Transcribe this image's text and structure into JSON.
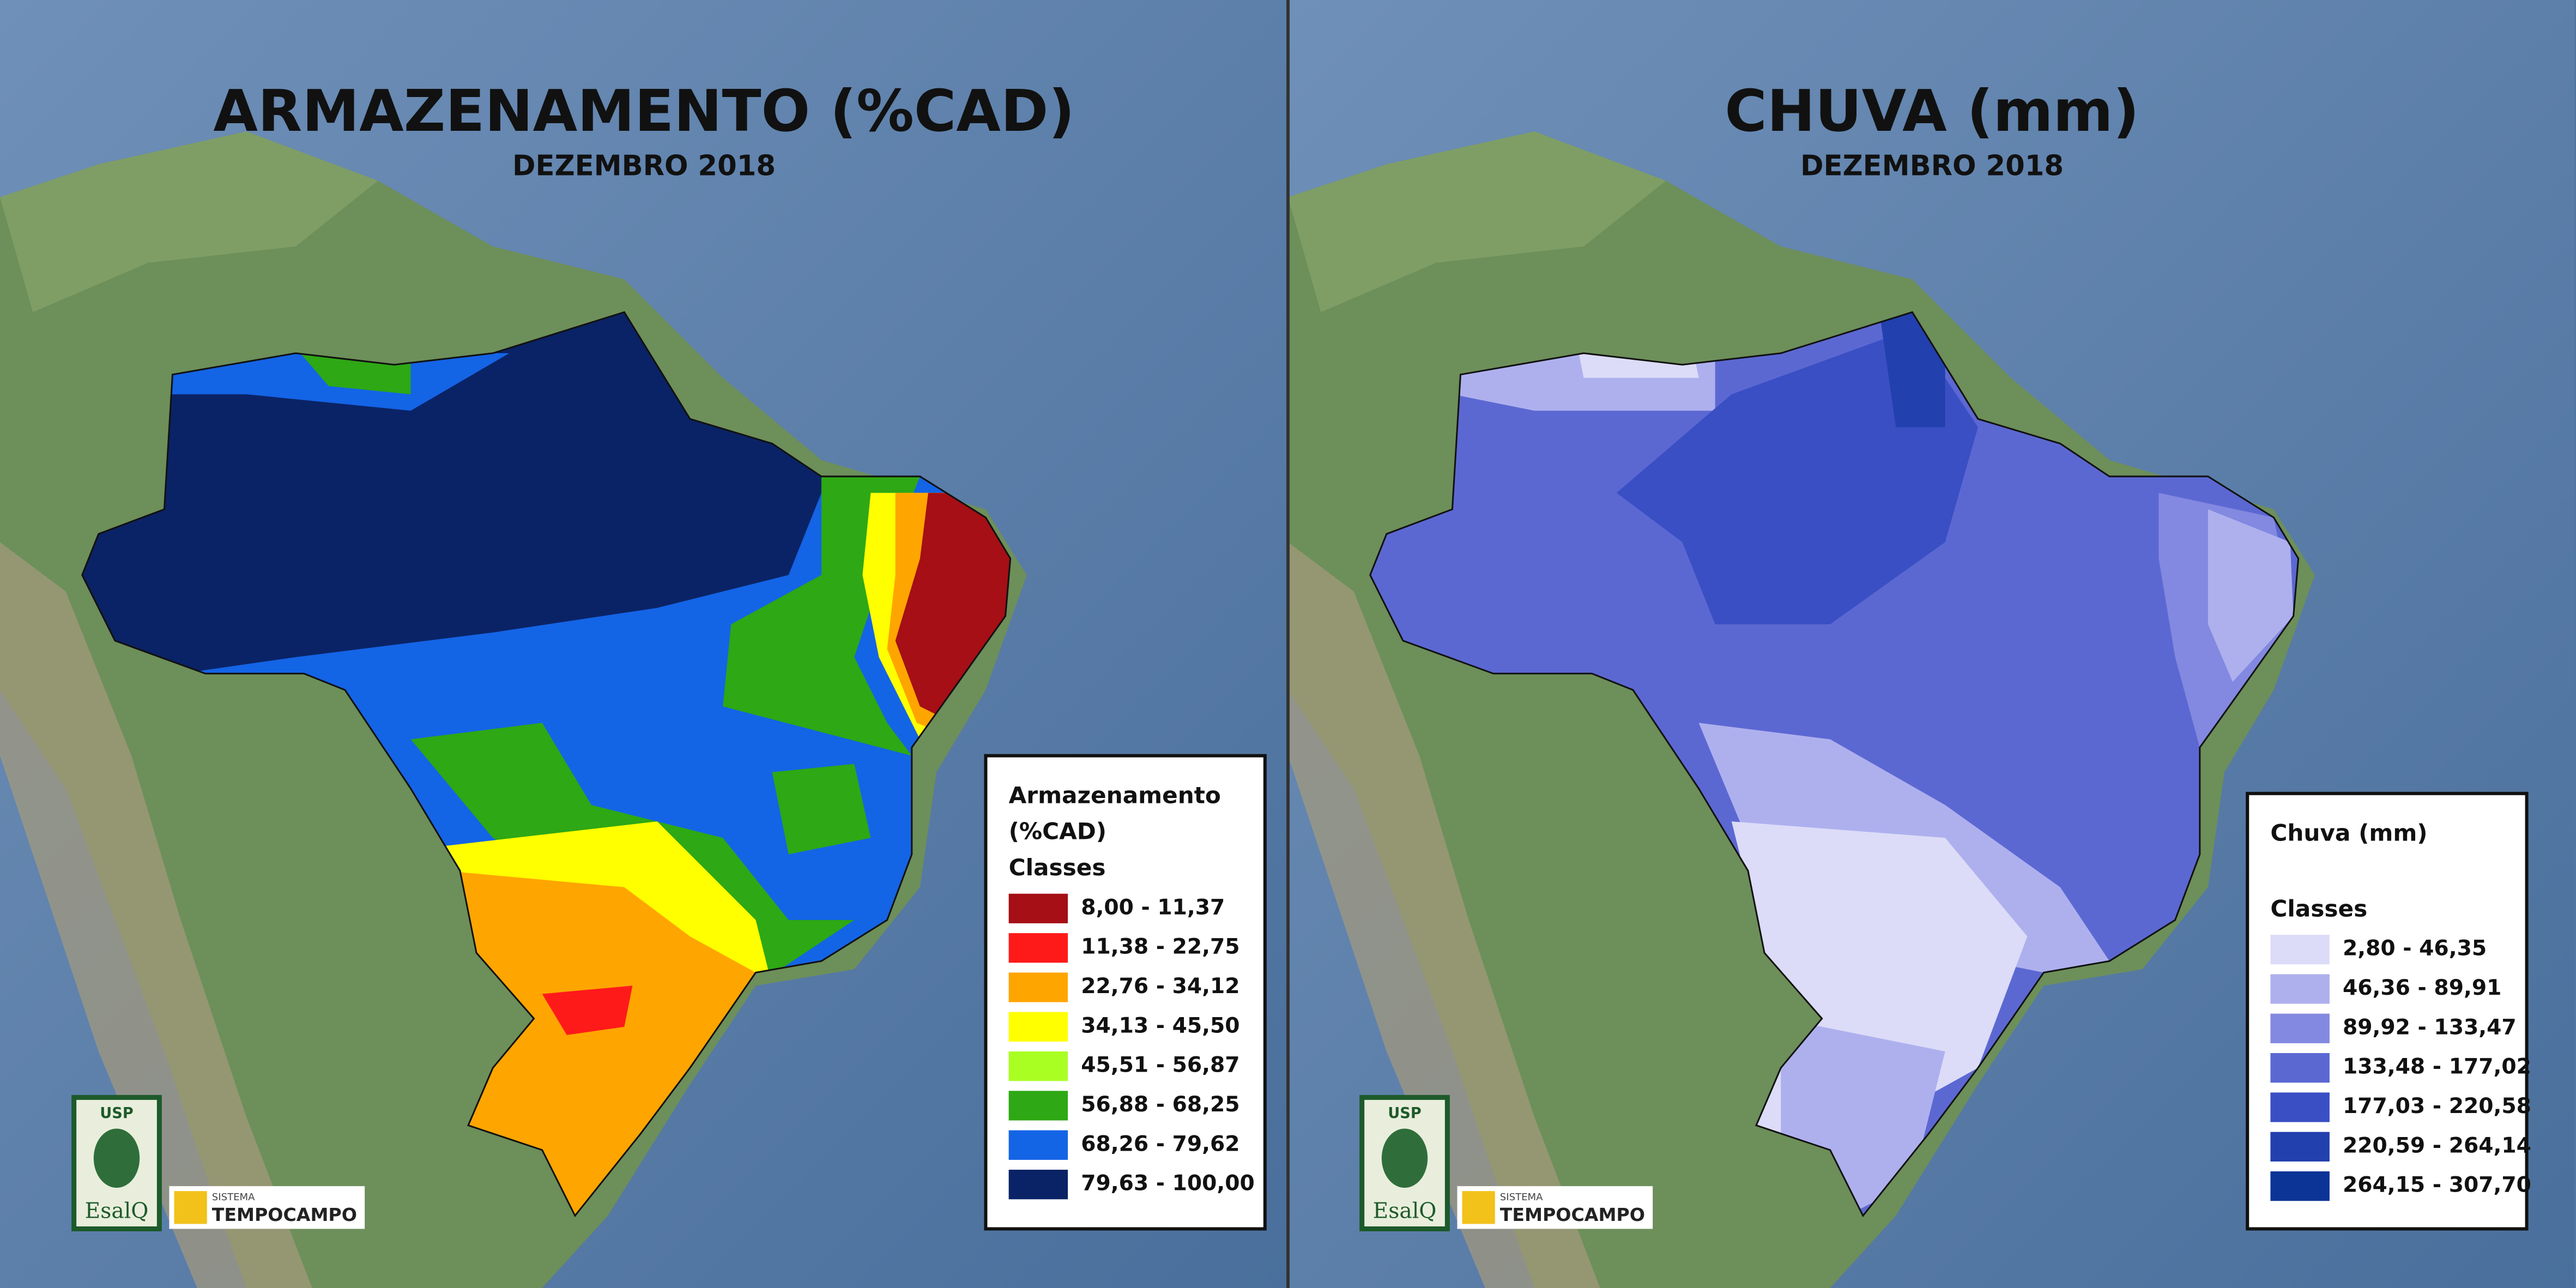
{
  "panels": [
    {
      "title": "ARMAZENAMENTO (%CAD)",
      "subtitle": "DEZEMBRO 2018",
      "legend_title": [
        "Armazenamento",
        "(%CAD)"
      ],
      "legend_subtitle": "Classes",
      "classes": [
        {
          "label": "8,00 - 11,37",
          "color": "#a50f15"
        },
        {
          "label": "11,38 - 22,75",
          "color": "#ff1a1a"
        },
        {
          "label": "22,76 - 34,12",
          "color": "#ffa500"
        },
        {
          "label": "34,13 - 45,50",
          "color": "#ffff00"
        },
        {
          "label": "45,51 - 56,87",
          "color": "#aaff22"
        },
        {
          "label": "56,88 - 68,25",
          "color": "#2ea814"
        },
        {
          "label": "68,26 - 79,62",
          "color": "#1464e6"
        },
        {
          "label": "79,63 - 100,00",
          "color": "#0a2366"
        }
      ]
    },
    {
      "title": "CHUVA (mm)",
      "subtitle": "DEZEMBRO 2018",
      "legend_title": [
        "Chuva (mm)"
      ],
      "legend_subtitle": "Classes",
      "classes": [
        {
          "label": "2,80 - 46,35",
          "color": "#dcdcf8"
        },
        {
          "label": "46,36 - 89,91",
          "color": "#aeb0ee"
        },
        {
          "label": "89,92 - 133,47",
          "color": "#8389e0"
        },
        {
          "label": "133,48 - 177,02",
          "color": "#5c68d2"
        },
        {
          "label": "177,03 - 220,58",
          "color": "#3a4fc4"
        },
        {
          "label": "220,59 - 264,14",
          "color": "#2240ae"
        },
        {
          "label": "264,15 - 307,70",
          "color": "#0b3496"
        }
      ]
    }
  ],
  "logos": {
    "university": "USP",
    "school": "EsalQ",
    "system": "SISTEMA",
    "brand": "TEMPOCAMPO"
  }
}
